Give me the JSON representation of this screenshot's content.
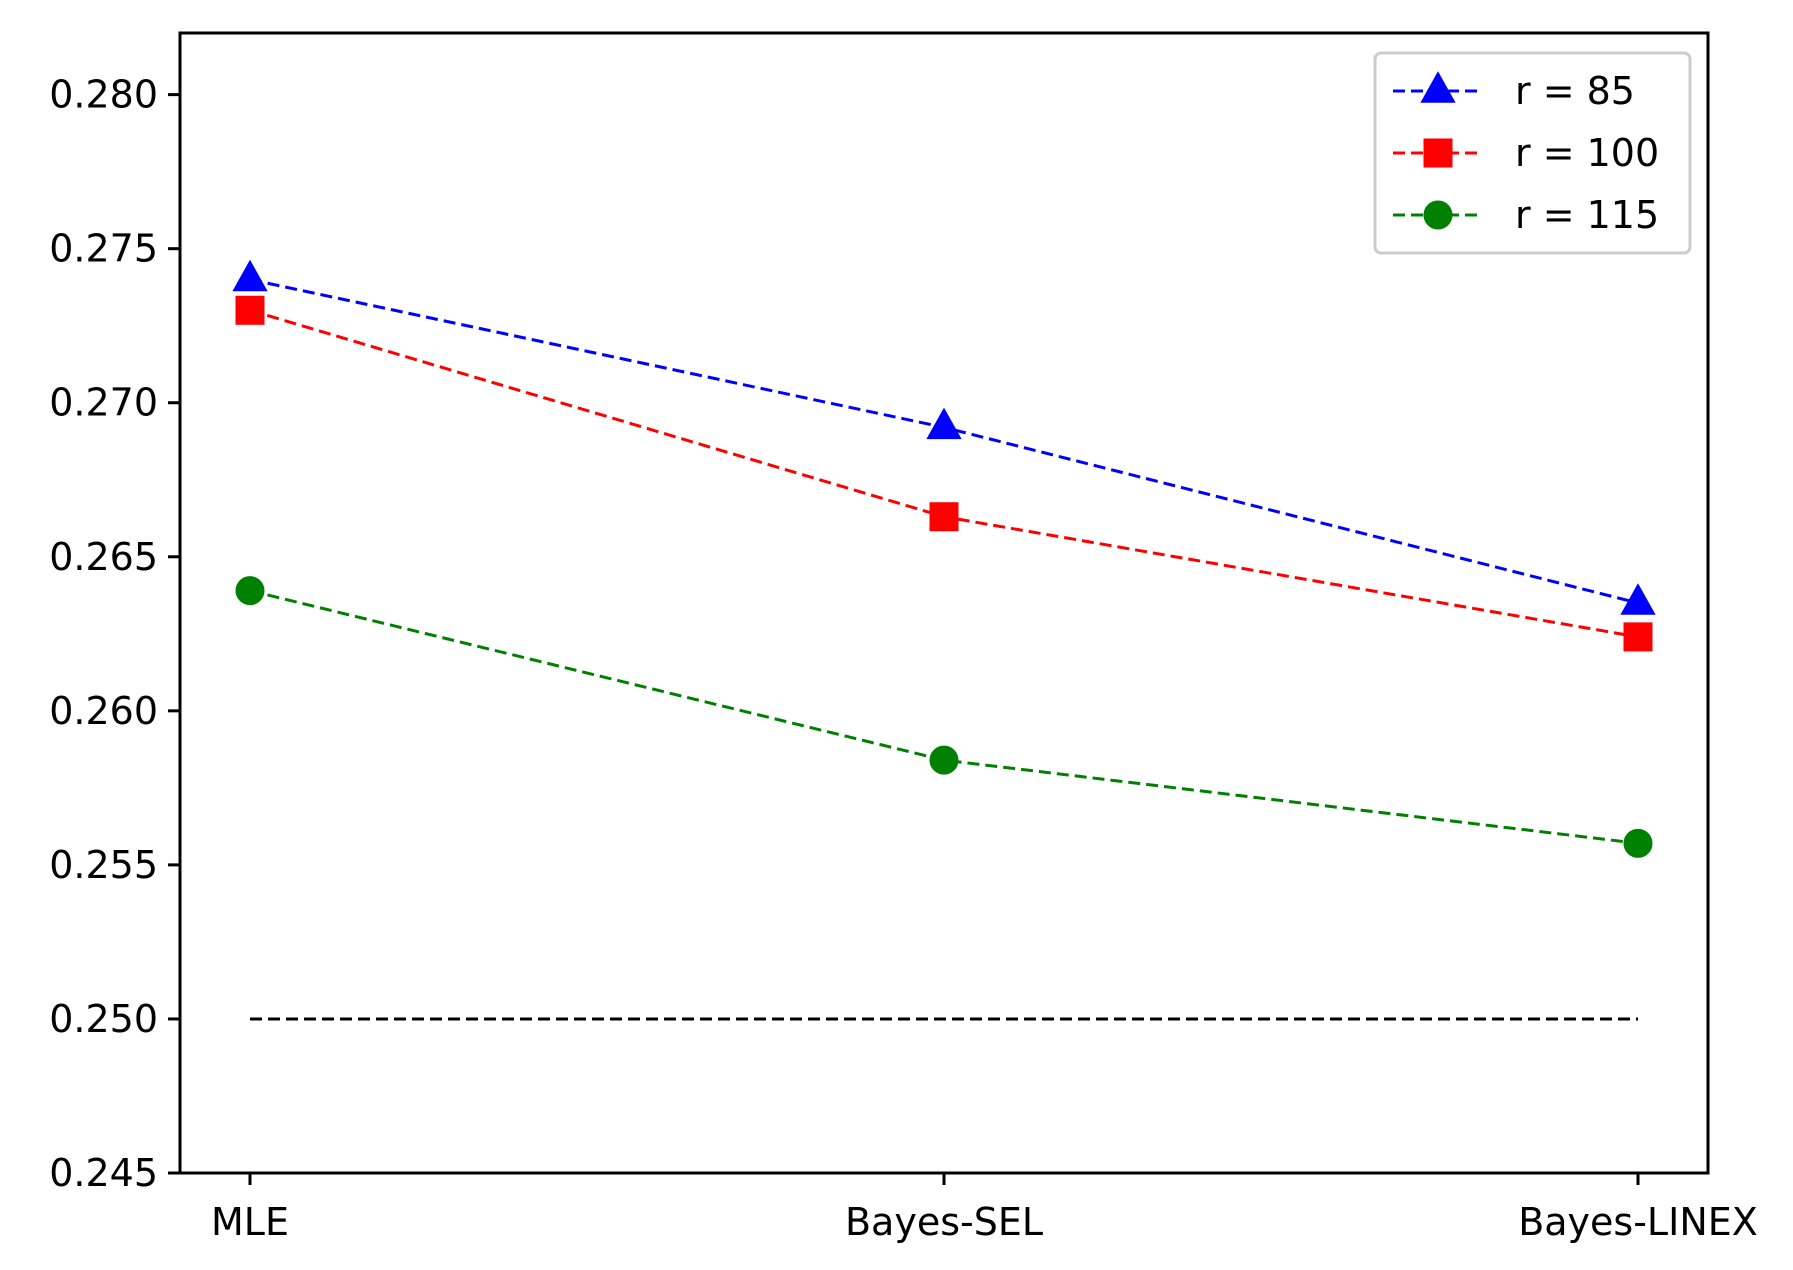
{
  "chart_data": {
    "type": "line",
    "title": "",
    "xlabel": "",
    "ylabel": "",
    "categories": [
      "MLE",
      "Bayes-SEL",
      "Bayes-LINEX"
    ],
    "ylim": [
      0.245,
      0.282
    ],
    "yticks": [
      "0.245",
      "0.250",
      "0.255",
      "0.260",
      "0.265",
      "0.270",
      "0.275",
      "0.280"
    ],
    "grid": false,
    "legend_position": "top-right",
    "series": [
      {
        "name": "r = 85",
        "color": "#0000ff",
        "marker": "triangle",
        "linestyle": "dashed",
        "values": [
          0.274,
          0.2692,
          0.2635
        ]
      },
      {
        "name": "r = 100",
        "color": "#ff0000",
        "marker": "square",
        "linestyle": "dashed",
        "values": [
          0.273,
          0.2663,
          0.2624
        ]
      },
      {
        "name": "r = 115",
        "color": "#008000",
        "marker": "circle",
        "linestyle": "dashed",
        "values": [
          0.2639,
          0.2584,
          0.2557
        ]
      }
    ],
    "reference_lines": [
      {
        "color": "#000000",
        "linestyle": "dashed",
        "y": 0.25
      }
    ]
  }
}
